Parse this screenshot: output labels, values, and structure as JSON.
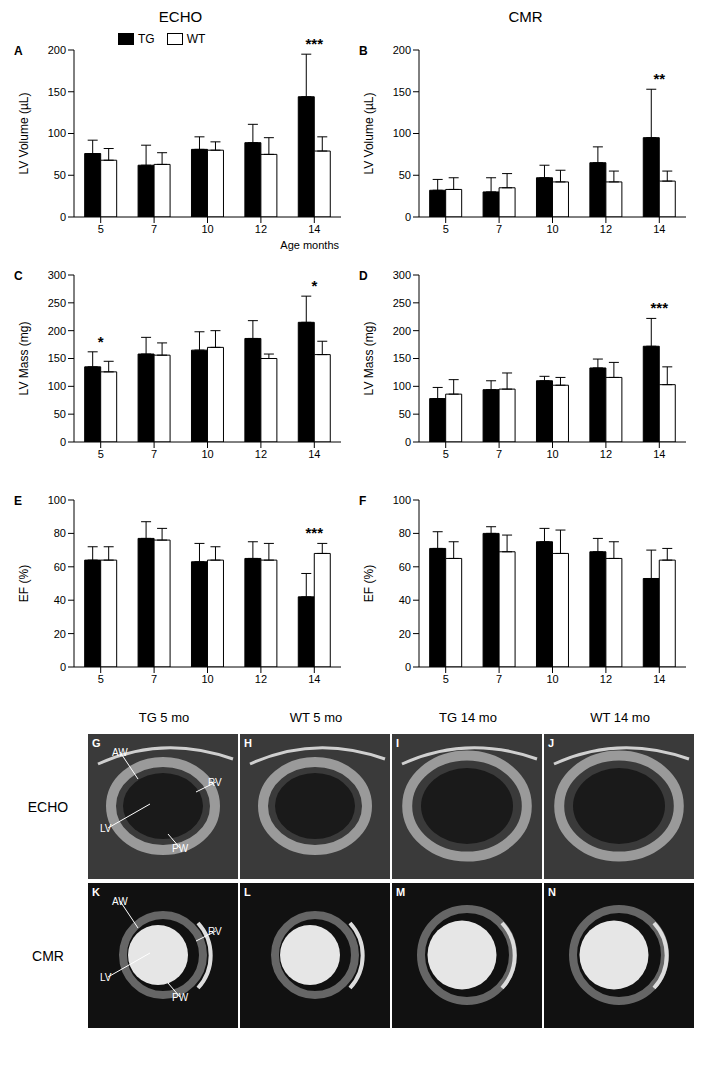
{
  "column_titles": [
    "ECHO",
    "CMR"
  ],
  "chart_data": [
    {
      "type": "bar",
      "title": "A",
      "ylabel": "LV Volume (µL)",
      "xlabel": "Age months",
      "legend": "top",
      "categories": [
        "5",
        "7",
        "10",
        "12",
        "14"
      ],
      "series": [
        {
          "name": "TG",
          "color": "#000000",
          "values": [
            76,
            62,
            81,
            89,
            144
          ],
          "errors": [
            16,
            24,
            15,
            22,
            51
          ]
        },
        {
          "name": "WT",
          "color": "#ffffff",
          "values": [
            68,
            63,
            80,
            75,
            79
          ],
          "errors": [
            14,
            14,
            10,
            20,
            17
          ]
        }
      ],
      "ylim": [
        0,
        200
      ],
      "yticks": [
        0,
        50,
        100,
        150,
        200
      ],
      "annotations": [
        {
          "category": "14",
          "text": "***"
        }
      ]
    },
    {
      "type": "bar",
      "title": "B",
      "ylabel": "LV Volume (µL)",
      "categories": [
        "5",
        "7",
        "10",
        "12",
        "14"
      ],
      "series": [
        {
          "name": "TG",
          "color": "#000000",
          "values": [
            32,
            30,
            47,
            65,
            95
          ],
          "errors": [
            13,
            17,
            15,
            19,
            58
          ]
        },
        {
          "name": "WT",
          "color": "#ffffff",
          "values": [
            33,
            35,
            42,
            42,
            43
          ],
          "errors": [
            14,
            17,
            14,
            13,
            12
          ]
        }
      ],
      "ylim": [
        0,
        200
      ],
      "yticks": [
        0,
        50,
        100,
        150,
        200
      ],
      "annotations": [
        {
          "category": "14",
          "text": "**"
        }
      ]
    },
    {
      "type": "bar",
      "title": "C",
      "ylabel": "LV Mass (mg)",
      "categories": [
        "5",
        "7",
        "10",
        "12",
        "14"
      ],
      "series": [
        {
          "name": "TG",
          "color": "#000000",
          "values": [
            135,
            158,
            165,
            186,
            215
          ],
          "errors": [
            27,
            30,
            33,
            32,
            47
          ]
        },
        {
          "name": "WT",
          "color": "#ffffff",
          "values": [
            126,
            156,
            170,
            150,
            157
          ],
          "errors": [
            19,
            22,
            30,
            8,
            24
          ]
        }
      ],
      "ylim": [
        0,
        300
      ],
      "yticks": [
        0,
        50,
        100,
        150,
        200,
        250,
        300
      ],
      "annotations": [
        {
          "category": "5",
          "text": "*"
        },
        {
          "category": "14",
          "text": "*"
        }
      ]
    },
    {
      "type": "bar",
      "title": "D",
      "ylabel": "LV Mass (mg)",
      "categories": [
        "5",
        "7",
        "10",
        "12",
        "14"
      ],
      "series": [
        {
          "name": "TG",
          "color": "#000000",
          "values": [
            78,
            94,
            110,
            133,
            172
          ],
          "errors": [
            20,
            16,
            8,
            16,
            50
          ]
        },
        {
          "name": "WT",
          "color": "#ffffff",
          "values": [
            86,
            95,
            102,
            116,
            103
          ],
          "errors": [
            26,
            29,
            14,
            27,
            32
          ]
        }
      ],
      "ylim": [
        0,
        300
      ],
      "yticks": [
        0,
        50,
        100,
        150,
        200,
        250,
        300
      ],
      "annotations": [
        {
          "category": "14",
          "text": "***"
        }
      ]
    },
    {
      "type": "bar",
      "title": "E",
      "ylabel": "EF (%)",
      "categories": [
        "5",
        "7",
        "10",
        "12",
        "14"
      ],
      "series": [
        {
          "name": "TG",
          "color": "#000000",
          "values": [
            64,
            77,
            63,
            65,
            42
          ],
          "errors": [
            8,
            10,
            11,
            10,
            14
          ]
        },
        {
          "name": "WT",
          "color": "#ffffff",
          "values": [
            64,
            76,
            64,
            64,
            68
          ],
          "errors": [
            8,
            7,
            8,
            10,
            6
          ]
        }
      ],
      "ylim": [
        0,
        100
      ],
      "yticks": [
        0,
        20,
        40,
        60,
        80,
        100
      ],
      "annotations": [
        {
          "category": "14",
          "text": "***"
        }
      ]
    },
    {
      "type": "bar",
      "title": "F",
      "ylabel": "EF (%)",
      "categories": [
        "5",
        "7",
        "10",
        "12",
        "14"
      ],
      "series": [
        {
          "name": "TG",
          "color": "#000000",
          "values": [
            71,
            80,
            75,
            69,
            53
          ],
          "errors": [
            10,
            4,
            8,
            8,
            17
          ]
        },
        {
          "name": "WT",
          "color": "#ffffff",
          "values": [
            65,
            69,
            68,
            65,
            64
          ],
          "errors": [
            10,
            10,
            14,
            10,
            7
          ]
        }
      ],
      "ylim": [
        0,
        100
      ],
      "yticks": [
        0,
        20,
        40,
        60,
        80,
        100
      ],
      "annotations": []
    }
  ],
  "image_grid": {
    "columns": [
      "TG 5 mo",
      "WT 5 mo",
      "TG 14 mo",
      "WT 14 mo"
    ],
    "rows": [
      {
        "label": "ECHO",
        "panels": [
          {
            "letter": "G",
            "labels": [
              "AW",
              "LV",
              "RV",
              "PW"
            ]
          },
          {
            "letter": "H",
            "labels": []
          },
          {
            "letter": "I",
            "labels": []
          },
          {
            "letter": "J",
            "labels": []
          }
        ]
      },
      {
        "label": "CMR",
        "panels": [
          {
            "letter": "K",
            "labels": [
              "AW",
              "RV",
              "LV",
              "PW"
            ]
          },
          {
            "letter": "L",
            "labels": []
          },
          {
            "letter": "M",
            "labels": []
          },
          {
            "letter": "N",
            "labels": []
          }
        ]
      }
    ]
  }
}
